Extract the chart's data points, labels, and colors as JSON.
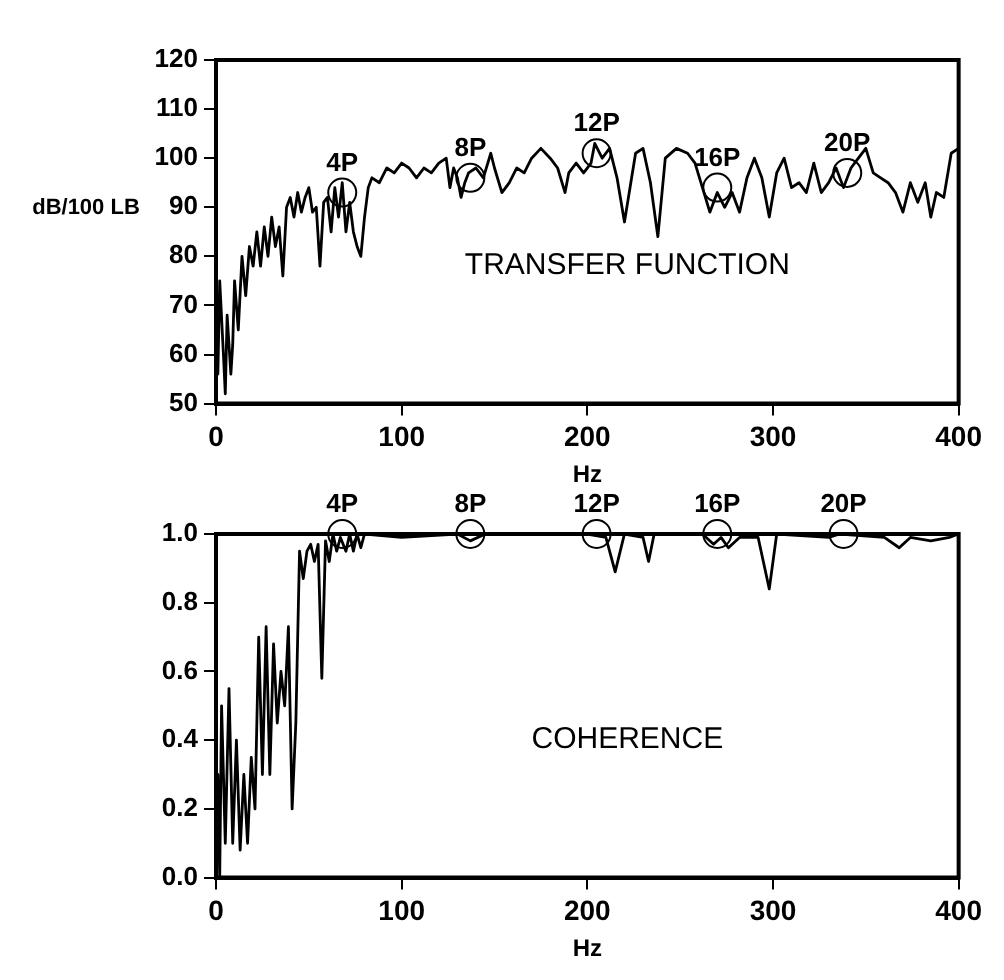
{
  "chart_data": [
    {
      "type": "line",
      "xlabel": "Hz",
      "ylabel": "dB/100 LB",
      "xlim": [
        0,
        400
      ],
      "xticks": [
        0,
        100,
        200,
        300,
        400
      ],
      "ylim": [
        50,
        120
      ],
      "yticks": [
        50,
        60,
        70,
        80,
        90,
        100,
        110,
        120
      ],
      "grid": false,
      "legend": false,
      "marker": "none",
      "line_style": "solid",
      "annotations": [
        "TRANSFER FUNCTION",
        {
          "text": "4P",
          "x": 68,
          "y": 93
        },
        {
          "text": "8P",
          "x": 137,
          "y": 96
        },
        {
          "text": "12P",
          "x": 205,
          "y": 101
        },
        {
          "text": "16P",
          "x": 270,
          "y": 94
        },
        {
          "text": "20P",
          "x": 340,
          "y": 97
        }
      ],
      "series": [
        {
          "color": "#000000",
          "x": [
            0,
            1,
            2,
            4,
            5,
            6,
            8,
            9,
            10,
            12,
            14,
            16,
            18,
            20,
            22,
            24,
            26,
            28,
            30,
            32,
            34,
            36,
            38,
            40,
            42,
            44,
            46,
            48,
            50,
            52,
            54,
            56,
            58,
            60,
            62,
            64,
            66,
            68,
            70,
            72,
            74,
            76,
            78,
            80,
            82,
            84,
            88,
            92,
            96,
            100,
            104,
            108,
            112,
            116,
            120,
            124,
            126,
            128,
            130,
            132,
            134,
            136,
            140,
            144,
            148,
            150,
            154,
            158,
            162,
            166,
            170,
            175,
            180,
            184,
            188,
            190,
            194,
            198,
            202,
            204,
            208,
            212,
            216,
            220,
            226,
            230,
            234,
            238,
            242,
            248,
            254,
            258,
            262,
            266,
            270,
            274,
            278,
            282,
            286,
            290,
            294,
            298,
            302,
            306,
            310,
            314,
            318,
            322,
            326,
            330,
            334,
            338,
            342,
            346,
            350,
            354,
            358,
            362,
            366,
            370,
            374,
            378,
            382,
            385,
            388,
            392,
            396,
            400
          ],
          "values": [
            70,
            56,
            75,
            60,
            52,
            68,
            56,
            62,
            75,
            65,
            80,
            72,
            82,
            78,
            85,
            78,
            86,
            80,
            88,
            82,
            86,
            76,
            90,
            92,
            88,
            93,
            89,
            92,
            94,
            89,
            90,
            78,
            91,
            92,
            85,
            94,
            88,
            95,
            85,
            91,
            85,
            82,
            80,
            88,
            94,
            96,
            95,
            98,
            97,
            99,
            98,
            96,
            98,
            97,
            99,
            100,
            94,
            98,
            96,
            92,
            95,
            97,
            98,
            96,
            101,
            98,
            93,
            95,
            98,
            97,
            100,
            102,
            100,
            98,
            93,
            97,
            99,
            97,
            99,
            103,
            100,
            102,
            96,
            87,
            101,
            102,
            95,
            84,
            100,
            102,
            101,
            99,
            94,
            89,
            93,
            90,
            93,
            89,
            96,
            100,
            96,
            88,
            97,
            100,
            94,
            95,
            93,
            99,
            93,
            95,
            98,
            94,
            98,
            100,
            102,
            97,
            96,
            95,
            93,
            89,
            95,
            91,
            95,
            88,
            93,
            92,
            101,
            102
          ]
        }
      ]
    },
    {
      "type": "line",
      "xlabel": "Hz",
      "xlim": [
        0,
        400
      ],
      "xticks": [
        0,
        100,
        200,
        300,
        400
      ],
      "ylim": [
        0,
        1
      ],
      "yticks": [
        {
          "value": 0,
          "label": "0.0"
        },
        0.2,
        0.4,
        0.6,
        0.8,
        {
          "value": 1,
          "label": "1.0"
        }
      ],
      "grid": false,
      "legend": false,
      "marker": "none",
      "line_style": "solid",
      "annotations": [
        "COHERENCE",
        {
          "text": "4P",
          "x": 68,
          "y": 1
        },
        {
          "text": "8P",
          "x": 137,
          "y": 1
        },
        {
          "text": "12P",
          "x": 205,
          "y": 1
        },
        {
          "text": "16P",
          "x": 270,
          "y": 1
        },
        {
          "text": "20P",
          "x": 338,
          "y": 1
        }
      ],
      "series": [
        {
          "color": "#000000",
          "x": [
            0,
            1,
            2,
            3,
            5,
            7,
            9,
            11,
            13,
            15,
            17,
            19,
            21,
            23,
            25,
            27,
            29,
            31,
            33,
            35,
            37,
            39,
            41,
            43,
            45,
            47,
            49,
            51,
            53,
            55,
            57,
            59,
            61,
            63,
            65,
            67,
            70,
            72,
            74,
            76,
            78,
            80,
            100,
            130,
            137,
            145,
            200,
            210,
            215,
            220,
            230,
            233,
            236,
            262,
            268,
            272,
            276,
            282,
            292,
            298,
            302,
            330,
            336,
            360,
            368,
            374,
            385,
            395,
            400
          ],
          "values": [
            0.05,
            0.3,
            0,
            0.5,
            0.1,
            0.55,
            0.1,
            0.4,
            0.08,
            0.3,
            0.1,
            0.35,
            0.2,
            0.7,
            0.3,
            0.73,
            0.3,
            0.68,
            0.45,
            0.6,
            0.5,
            0.73,
            0.2,
            0.45,
            0.95,
            0.87,
            0.95,
            0.97,
            0.92,
            0.97,
            0.58,
            0.98,
            0.92,
            1,
            0.95,
            0.99,
            0.95,
            1,
            0.95,
            1,
            0.96,
            1,
            0.99,
            1,
            0.98,
            1,
            1,
            0.99,
            0.89,
            1,
            0.99,
            0.92,
            1,
            1,
            0.97,
            0.99,
            0.96,
            0.99,
            0.99,
            0.84,
            1,
            0.99,
            1,
            0.99,
            0.96,
            0.99,
            0.98,
            0.99,
            1
          ]
        }
      ]
    }
  ]
}
